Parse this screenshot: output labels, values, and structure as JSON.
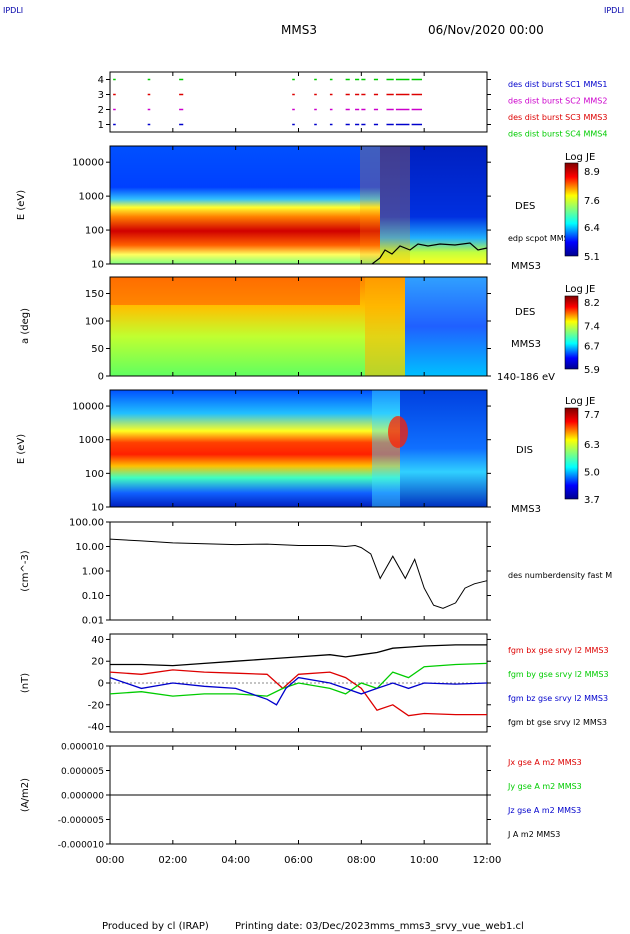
{
  "header": {
    "corner_label": "IPDLI",
    "title": "MMS3",
    "date": "06/Nov/2020 00:00"
  },
  "footer": {
    "produced_by": "Produced by cl (IRAP)",
    "printing_date": "Printing date: 03/Dec/2023",
    "file": "mms_mms3_srvy_vue_web1.cl"
  },
  "time_axis": {
    "ticks": [
      "00:00",
      "02:00",
      "04:00",
      "06:00",
      "08:00",
      "10:00",
      "12:00"
    ],
    "range_hours": [
      0,
      12
    ]
  },
  "colors": {
    "sc1": "#0000cc",
    "sc2": "#cc00cc",
    "sc3": "#dd0000",
    "sc4": "#00cc00",
    "black": "#000000",
    "label_blue": "#0000aa"
  },
  "chart_data": [
    {
      "type": "scatter",
      "panel": "burst",
      "yticks": [
        "4",
        "3",
        "2",
        "1"
      ],
      "ylim": [
        0.5,
        4.5
      ],
      "legend": [
        {
          "name": "des dist burst SC1 MMS1",
          "color": "#0000cc"
        },
        {
          "name": "des dist burst SC2 MMS2",
          "color": "#cc00cc"
        },
        {
          "name": "des dist burst SC3 MMS3",
          "color": "#dd0000"
        },
        {
          "name": "des dist burst SC4 MMS4",
          "color": "#00cc00"
        }
      ],
      "segments_hours": [
        [
          0.1,
          0.15
        ],
        [
          1.2,
          1.25
        ],
        [
          2.2,
          2.3
        ],
        [
          5.8,
          5.85
        ],
        [
          6.5,
          6.55
        ],
        [
          7.0,
          7.05
        ],
        [
          7.5,
          7.6
        ],
        [
          7.8,
          7.9
        ],
        [
          8.0,
          8.1
        ],
        [
          8.4,
          8.5
        ],
        [
          8.8,
          9.0
        ],
        [
          9.1,
          9.5
        ],
        [
          9.6,
          9.9
        ]
      ]
    },
    {
      "type": "heatmap",
      "panel": "des_energy",
      "ylabel": "E (eV)",
      "yticks": [
        "10000",
        "1000",
        "100",
        "10"
      ],
      "ylim": [
        10,
        30000
      ],
      "yscale": "log",
      "instrument_label": "DES",
      "overlay_label": "edp scpot MMS3",
      "spacecraft": "MMS3",
      "colorbar": {
        "title": "Log JE",
        "ticks": [
          "8.9",
          "7.6",
          "6.4",
          "5.1"
        ],
        "range": [
          5.1,
          8.9
        ]
      }
    },
    {
      "type": "heatmap",
      "panel": "des_pitch",
      "ylabel": "a (deg)",
      "yticks": [
        "150",
        "100",
        "50",
        "0"
      ],
      "ylim": [
        0,
        180
      ],
      "instrument_label": "DES",
      "spacecraft": "MMS3",
      "energy_range": "140-186 eV",
      "colorbar": {
        "title": "Log JE",
        "ticks": [
          "8.2",
          "7.4",
          "6.7",
          "5.9"
        ],
        "range": [
          5.9,
          8.2
        ]
      }
    },
    {
      "type": "heatmap",
      "panel": "dis_energy",
      "ylabel": "E (eV)",
      "yticks": [
        "10000",
        "1000",
        "100",
        "10"
      ],
      "ylim": [
        10,
        30000
      ],
      "yscale": "log",
      "instrument_label": "DIS",
      "spacecraft": "MMS3",
      "colorbar": {
        "title": "Log JE",
        "ticks": [
          "7.7",
          "6.3",
          "5.0",
          "3.7"
        ],
        "range": [
          3.7,
          7.7
        ]
      }
    },
    {
      "type": "line",
      "panel": "density",
      "ylabel": "(cm^-3)",
      "yticks": [
        "100.00",
        "10.00",
        "1.00",
        "0.10",
        "0.01"
      ],
      "ylim": [
        0.01,
        100
      ],
      "yscale": "log",
      "series": [
        {
          "name": "des numberdensity fast M",
          "color": "#000000",
          "x": [
            0,
            1,
            2,
            3,
            4,
            5,
            6,
            7,
            7.5,
            7.8,
            8.0,
            8.3,
            8.6,
            9.0,
            9.4,
            9.7,
            10.0,
            10.3,
            10.6,
            11.0,
            11.3,
            11.6,
            12.0
          ],
          "values": [
            20,
            17,
            14,
            13,
            12,
            12.5,
            11,
            11,
            10,
            11,
            9,
            5,
            0.5,
            4,
            0.5,
            3,
            0.2,
            0.04,
            0.03,
            0.05,
            0.2,
            0.3,
            0.4
          ]
        }
      ]
    },
    {
      "type": "line",
      "panel": "bfield",
      "ylabel": "(nT)",
      "yticks": [
        "40",
        "20",
        "0",
        "-20",
        "-40"
      ],
      "ylim": [
        -45,
        45
      ],
      "series": [
        {
          "name": "fgm bx gse srvy l2 MMS3",
          "color": "#dd0000",
          "x": [
            0,
            1,
            2,
            3,
            4,
            5,
            5.5,
            6,
            7,
            7.5,
            8,
            8.5,
            9,
            9.5,
            10,
            11,
            12
          ],
          "values": [
            10,
            8,
            12,
            10,
            9,
            8,
            -5,
            8,
            10,
            5,
            -5,
            -25,
            -20,
            -30,
            -28,
            -29,
            -29
          ]
        },
        {
          "name": "fgm by gse srvy l2 MMS3",
          "color": "#00cc00",
          "x": [
            0,
            1,
            2,
            3,
            4,
            5,
            5.5,
            6,
            7,
            7.5,
            8,
            8.5,
            9,
            9.5,
            10,
            11,
            12
          ],
          "values": [
            -10,
            -8,
            -12,
            -10,
            -10,
            -12,
            -5,
            0,
            -5,
            -10,
            0,
            -5,
            10,
            5,
            15,
            17,
            18
          ]
        },
        {
          "name": "fgm bz gse srvy l2 MMS3",
          "color": "#0000cc",
          "x": [
            0,
            1,
            2,
            3,
            4,
            5,
            5.3,
            5.6,
            6,
            7,
            7.5,
            8,
            8.5,
            9,
            9.5,
            10,
            11,
            12
          ],
          "values": [
            5,
            -5,
            0,
            -3,
            -5,
            -15,
            -20,
            -5,
            5,
            0,
            -5,
            -10,
            -5,
            0,
            -5,
            0,
            -1,
            0
          ]
        },
        {
          "name": "fgm bt gse srvy l2 MMS3",
          "color": "#000000",
          "x": [
            0,
            1,
            2,
            3,
            4,
            5,
            6,
            7,
            7.5,
            8,
            8.5,
            9,
            9.5,
            10,
            11,
            12
          ],
          "values": [
            17,
            17,
            16,
            18,
            20,
            22,
            24,
            26,
            24,
            26,
            28,
            32,
            33,
            34,
            35,
            35
          ]
        }
      ]
    },
    {
      "type": "line",
      "panel": "current",
      "ylabel": "(A/m2)",
      "yticks": [
        "0.000010",
        "0.000005",
        "0.000000",
        "-0.000005",
        "-0.000010"
      ],
      "ylim": [
        -1e-05,
        1e-05
      ],
      "series": [
        {
          "name": "Jx gse A m2 MMS3",
          "color": "#dd0000",
          "x": [
            0,
            12
          ],
          "values": [
            0,
            0
          ]
        },
        {
          "name": "Jy gse A m2 MMS3",
          "color": "#00cc00",
          "x": [
            0,
            12
          ],
          "values": [
            0,
            0
          ]
        },
        {
          "name": "Jz gse A m2 MMS3",
          "color": "#0000cc",
          "x": [
            0,
            12
          ],
          "values": [
            0,
            0
          ]
        },
        {
          "name": "J A m2 MMS3",
          "color": "#000000",
          "x": [
            0,
            12
          ],
          "values": [
            0,
            0
          ]
        }
      ]
    }
  ]
}
